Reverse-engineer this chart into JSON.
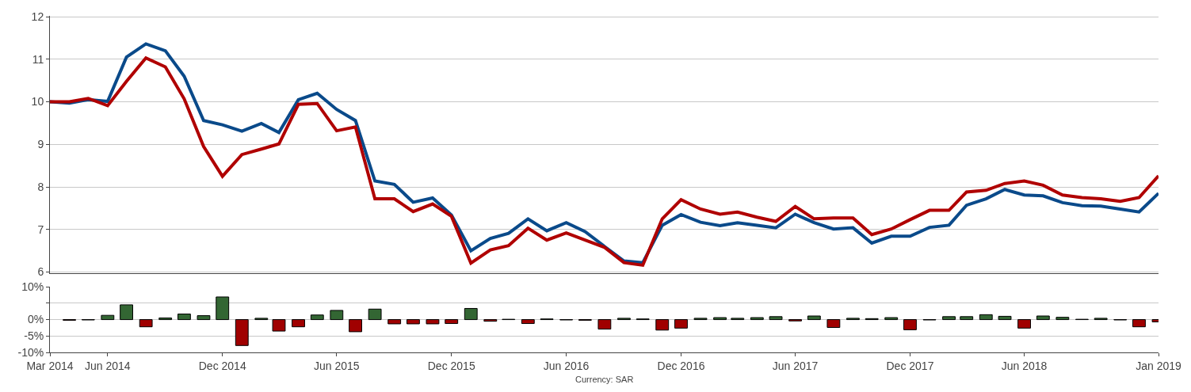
{
  "chart_data": [
    {
      "type": "line",
      "x": [
        "2014-03",
        "2014-04",
        "2014-05",
        "2014-06",
        "2014-07",
        "2014-08",
        "2014-09",
        "2014-10",
        "2014-11",
        "2014-12",
        "2015-01",
        "2015-02",
        "2015-03",
        "2015-04",
        "2015-05",
        "2015-06",
        "2015-07",
        "2015-08",
        "2015-09",
        "2015-10",
        "2015-11",
        "2015-12",
        "2016-01",
        "2016-02",
        "2016-03",
        "2016-04",
        "2016-05",
        "2016-06",
        "2016-07",
        "2016-08",
        "2016-09",
        "2016-10",
        "2016-11",
        "2016-12",
        "2017-01",
        "2017-02",
        "2017-03",
        "2017-04",
        "2017-05",
        "2017-06",
        "2017-07",
        "2017-08",
        "2017-09",
        "2017-10",
        "2017-11",
        "2017-12",
        "2018-01",
        "2018-02",
        "2018-03",
        "2018-04",
        "2018-05",
        "2018-06",
        "2018-07",
        "2018-08",
        "2018-09",
        "2018-10",
        "2018-11",
        "2018-12",
        "2019-01"
      ],
      "series": [
        {
          "color": "#0a4a8a",
          "values": [
            10.0,
            9.97,
            10.05,
            10.01,
            11.05,
            11.36,
            11.2,
            10.6,
            9.56,
            9.46,
            9.31,
            9.49,
            9.28,
            10.05,
            10.2,
            9.82,
            9.56,
            8.14,
            8.06,
            7.64,
            7.74,
            7.34,
            6.5,
            6.79,
            6.91,
            7.25,
            6.97,
            7.16,
            6.95,
            6.6,
            6.26,
            6.22,
            7.1,
            7.35,
            7.17,
            7.09,
            7.16,
            7.1,
            7.04,
            7.36,
            7.16,
            7.01,
            7.04,
            6.68,
            6.84,
            6.84,
            7.05,
            7.1,
            7.57,
            7.72,
            7.94,
            7.81,
            7.79,
            7.63,
            7.56,
            7.55,
            7.48,
            7.41,
            7.85
          ]
        },
        {
          "color": "#b00000",
          "values": [
            10.0,
            10.0,
            10.08,
            9.91,
            10.48,
            11.03,
            10.82,
            10.07,
            8.95,
            8.25,
            8.76,
            8.89,
            9.01,
            9.94,
            9.96,
            9.32,
            9.41,
            7.72,
            7.72,
            7.42,
            7.6,
            7.31,
            6.21,
            6.52,
            6.62,
            7.03,
            6.75,
            6.92,
            6.75,
            6.58,
            6.22,
            6.16,
            7.25,
            7.7,
            7.48,
            7.36,
            7.41,
            7.29,
            7.19,
            7.54,
            7.25,
            7.27,
            7.27,
            6.88,
            7.01,
            7.23,
            7.45,
            7.45,
            7.88,
            7.92,
            8.08,
            8.14,
            8.04,
            7.81,
            7.75,
            7.72,
            7.66,
            7.75,
            8.26
          ]
        }
      ],
      "xlim": [
        "2014-03",
        "2019-01"
      ],
      "ylim": [
        5.97,
        12.02
      ],
      "yticks": [
        6,
        7,
        8,
        9,
        10,
        11,
        12
      ],
      "grid": "y",
      "tick_labels": "y",
      "line_style": "solid",
      "marker": "none"
    },
    {
      "type": "bar",
      "x": [
        "2014-04",
        "2014-05",
        "2014-06",
        "2014-07",
        "2014-08",
        "2014-09",
        "2014-10",
        "2014-11",
        "2014-12",
        "2015-01",
        "2015-02",
        "2015-03",
        "2015-04",
        "2015-05",
        "2015-06",
        "2015-07",
        "2015-08",
        "2015-09",
        "2015-10",
        "2015-11",
        "2015-12",
        "2016-01",
        "2016-02",
        "2016-03",
        "2016-04",
        "2016-05",
        "2016-06",
        "2016-07",
        "2016-08",
        "2016-09",
        "2016-10",
        "2016-11",
        "2016-12",
        "2017-01",
        "2017-02",
        "2017-03",
        "2017-04",
        "2017-05",
        "2017-06",
        "2017-07",
        "2017-08",
        "2017-09",
        "2017-10",
        "2017-11",
        "2017-12",
        "2018-01",
        "2018-02",
        "2018-03",
        "2018-04",
        "2018-05",
        "2018-06",
        "2018-07",
        "2018-08",
        "2018-09",
        "2018-10",
        "2018-11",
        "2018-12",
        "2019-01"
      ],
      "values": [
        -0.2,
        -0.1,
        1.3,
        4.5,
        -2.2,
        0.5,
        1.7,
        1.2,
        6.9,
        -7.9,
        0.4,
        -3.5,
        -2.2,
        1.4,
        2.8,
        -3.7,
        3.2,
        -1.3,
        -1.3,
        -1.3,
        -1.2,
        3.4,
        -0.5,
        0.1,
        -1.2,
        0.2,
        -0.1,
        -0.2,
        -2.9,
        0.4,
        0.2,
        -3.2,
        -2.6,
        0.4,
        0.6,
        0.4,
        0.6,
        0.9,
        -0.4,
        1.1,
        -2.4,
        0.4,
        0.3,
        0.6,
        -3.1,
        -0.1,
        0.9,
        0.9,
        1.5,
        1.0,
        -2.6,
        1.1,
        0.7,
        0.1,
        0.4,
        -0.1,
        -2.2,
        -0.7
      ],
      "colors": [
        "#a00000",
        "#a00000",
        "#336633",
        "#336633",
        "#a00000",
        "#336633",
        "#336633",
        "#336633",
        "#336633",
        "#a00000",
        "#336633",
        "#a00000",
        "#a00000",
        "#336633",
        "#336633",
        "#a00000",
        "#336633",
        "#a00000",
        "#a00000",
        "#a00000",
        "#a00000",
        "#336633",
        "#a00000",
        "#336633",
        "#a00000",
        "#336633",
        "#a00000",
        "#a00000",
        "#a00000",
        "#336633",
        "#336633",
        "#a00000",
        "#a00000",
        "#336633",
        "#336633",
        "#336633",
        "#336633",
        "#336633",
        "#a00000",
        "#336633",
        "#a00000",
        "#336633",
        "#336633",
        "#336633",
        "#a00000",
        "#a00000",
        "#336633",
        "#336633",
        "#336633",
        "#336633",
        "#a00000",
        "#336633",
        "#336633",
        "#336633",
        "#336633",
        "#a00000",
        "#a00000",
        "#a00000"
      ],
      "xlim": [
        "2014-03",
        "2019-01"
      ],
      "xticks": [
        {
          "value": "2014-03",
          "label": "Mar 2014"
        },
        {
          "value": "2014-06",
          "label": "Jun 2014"
        },
        {
          "value": "2014-12",
          "label": "Dec 2014"
        },
        {
          "value": "2015-06",
          "label": "Jun 2015"
        },
        {
          "value": "2015-12",
          "label": "Dec 2015"
        },
        {
          "value": "2016-06",
          "label": "Jun 2016"
        },
        {
          "value": "2016-12",
          "label": "Dec 2016"
        },
        {
          "value": "2017-06",
          "label": "Jun 2017"
        },
        {
          "value": "2017-12",
          "label": "Dec 2017"
        },
        {
          "value": "2018-06",
          "label": "Jun 2018"
        },
        {
          "value": "2019-01",
          "label": "Jan 2019"
        }
      ],
      "ylim": [
        -10,
        10
      ],
      "yticks": [
        {
          "value": -10,
          "label": "-10%"
        },
        {
          "value": -5,
          "label": "-5%"
        },
        {
          "value": 0,
          "label": "0%"
        },
        {
          "value": 5,
          "label": null
        },
        {
          "value": 10,
          "label": "10%"
        }
      ],
      "grid": "y",
      "annotations": [
        "Currency: SAR"
      ]
    }
  ]
}
